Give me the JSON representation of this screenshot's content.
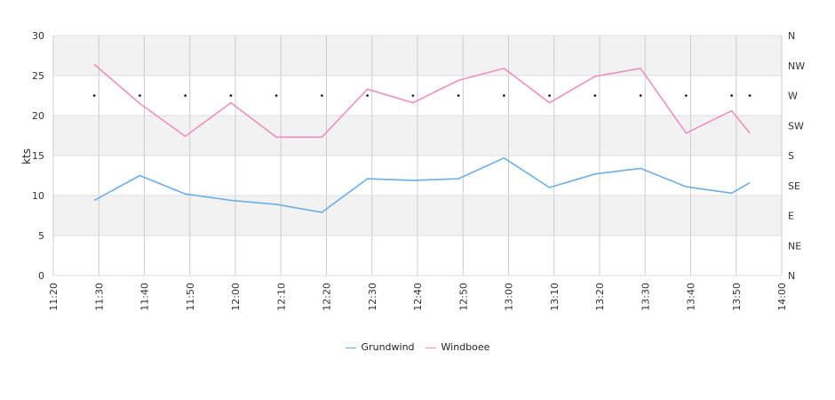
{
  "chart_data": {
    "type": "line",
    "ylabel": "kts",
    "ylim": [
      0,
      30
    ],
    "y_ticks": [
      "0",
      "5",
      "10",
      "15",
      "20",
      "25",
      "30"
    ],
    "x_ticks": [
      "11:20",
      "11:30",
      "11:40",
      "11:50",
      "12:00",
      "12:10",
      "12:20",
      "12:30",
      "12:40",
      "12:50",
      "13:00",
      "13:10",
      "13:20",
      "13:30",
      "13:40",
      "13:50",
      "14:00"
    ],
    "x_range": [
      "11:20",
      "14:00"
    ],
    "y2_ticks": [
      "N",
      "NE",
      "E",
      "SE",
      "S",
      "SW",
      "W",
      "NW",
      "N"
    ],
    "grid": true,
    "legend_position": "bottom",
    "series": [
      {
        "name": "Grundwind",
        "color": "#6aaeea",
        "x": [
          "11:29",
          "11:39",
          "11:49",
          "11:59",
          "12:09",
          "12:19",
          "12:29",
          "12:39",
          "12:49",
          "12:59",
          "13:09",
          "13:19",
          "13:29",
          "13:39",
          "13:49",
          "13:53"
        ],
        "values": [
          9.4,
          12.5,
          10.2,
          9.4,
          8.9,
          7.9,
          12.1,
          11.9,
          12.1,
          14.7,
          11.0,
          12.7,
          13.4,
          11.1,
          10.3,
          11.6
        ]
      },
      {
        "name": "Windboee",
        "color": "#ef8fbd",
        "x": [
          "11:29",
          "11:39",
          "11:49",
          "11:59",
          "12:09",
          "12:19",
          "12:29",
          "12:39",
          "12:49",
          "12:59",
          "13:09",
          "13:19",
          "13:29",
          "13:39",
          "13:49",
          "13:53"
        ],
        "values": [
          26.4,
          21.5,
          17.4,
          21.6,
          17.3,
          17.3,
          23.3,
          21.6,
          24.4,
          25.9,
          21.6,
          24.9,
          25.9,
          17.8,
          20.6,
          17.8
        ]
      },
      {
        "name": "",
        "type": "scatter",
        "axis": "direction",
        "color": "#000000",
        "x": [
          "11:29",
          "11:39",
          "11:49",
          "11:59",
          "12:09",
          "12:19",
          "12:29",
          "12:39",
          "12:49",
          "12:59",
          "13:09",
          "13:19",
          "13:29",
          "13:39",
          "13:49",
          "13:53"
        ],
        "values": [
          "W",
          "W",
          "W",
          "W",
          "W",
          "W",
          "W",
          "W",
          "W",
          "W",
          "W",
          "W",
          "W",
          "W",
          "W",
          "W"
        ]
      }
    ]
  }
}
